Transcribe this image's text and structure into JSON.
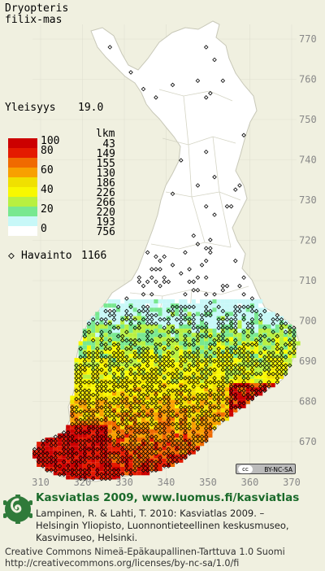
{
  "species": {
    "line1": "Dryopteris",
    "line2": "filix-mas"
  },
  "frequency": {
    "label": "Yleisyys",
    "value": "19.0"
  },
  "legend": {
    "count_header": "lkm",
    "classes": [
      {
        "label": "100",
        "color": "#cc0000",
        "count": "43"
      },
      {
        "label": "80",
        "color": "#e41a00",
        "count": "149"
      },
      {
        "label": "",
        "color": "#f06a00",
        "count": "155"
      },
      {
        "label": "60",
        "color": "#f8a000",
        "count": "130"
      },
      {
        "label": "",
        "color": "#f0e000",
        "count": "186"
      },
      {
        "label": "40",
        "color": "#f8f800",
        "count": "226"
      },
      {
        "label": "",
        "color": "#b8f040",
        "count": "266"
      },
      {
        "label": "20",
        "color": "#78e890",
        "count": "220"
      },
      {
        "label": "",
        "color": "#c8f8f8",
        "count": "193"
      },
      {
        "label": "0",
        "color": "#ffffff",
        "count": "756"
      }
    ],
    "observation_label": "Havainto",
    "observation_count": "1166"
  },
  "axes": {
    "northing": [
      "770",
      "760",
      "750",
      "740",
      "730",
      "720",
      "710",
      "700",
      "690",
      "680",
      "670"
    ],
    "easting": [
      "310",
      "320",
      "330",
      "340",
      "350",
      "360",
      "370"
    ]
  },
  "colors": {
    "land": "#ffffff",
    "sea": "#f0f0e0",
    "border": "#c8c8b8",
    "grid": "#e0e0d0",
    "marker": "#000000"
  },
  "license_badge": {
    "cc": "cc",
    "text": "BY-NC-SA"
  },
  "footer": {
    "heading": "Kasviatlas 2009, www.luomus.fi/kasviatlas",
    "citation_lines": [
      "Lampinen, R. & Lahti, T. 2010: Kasviatlas 2009. –",
      "Helsingin Yliopisto, Luonnontieteellinen keskusmuseo,",
      "Kasvimuseo, Helsinki."
    ],
    "license_lines": [
      "Creative Commons Nimeä-Epäkaupallinen-Tarttuva 1.0 Suomi",
      "http://creativecommons.org/licenses/by-nc-sa/1.0/fi"
    ]
  }
}
